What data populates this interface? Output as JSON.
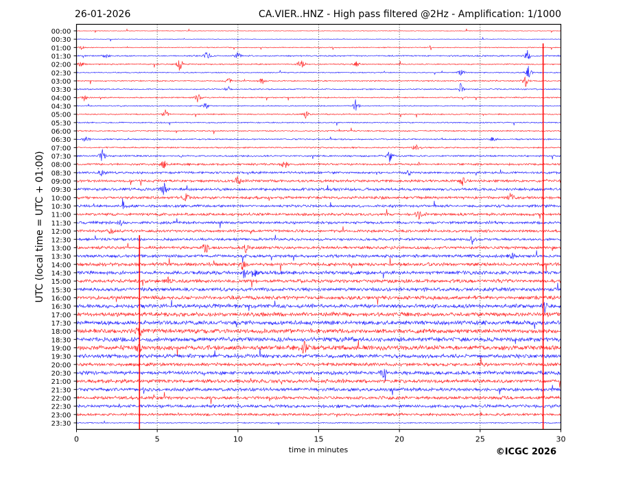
{
  "chart_data": {
    "type": "line",
    "subtype": "helicorder",
    "date": "26-01-2026",
    "title": "CA.VIER..HNZ - High pass filtered @2Hz - Amplification: 1/1000",
    "xlabel": "time in minutes",
    "ylabel": "UTC (local time = UTC + 01:00)",
    "xlim": [
      0,
      30
    ],
    "xticks": [
      "0",
      "5",
      "10",
      "15",
      "20",
      "25",
      "30"
    ],
    "xtick_values": [
      0,
      5,
      10,
      15,
      20,
      25,
      30
    ],
    "grid": "vertical dotted at 5-minute intervals",
    "rows": [
      "00:00",
      "00:30",
      "01:00",
      "01:30",
      "02:00",
      "02:30",
      "03:00",
      "03:30",
      "04:00",
      "04:30",
      "05:00",
      "05:30",
      "06:00",
      "06:30",
      "07:00",
      "07:30",
      "08:00",
      "08:30",
      "09:00",
      "09:30",
      "10:00",
      "10:30",
      "11:00",
      "11:30",
      "12:00",
      "12:30",
      "13:00",
      "13:30",
      "14:00",
      "14:30",
      "15:00",
      "15:30",
      "16:00",
      "16:30",
      "17:00",
      "17:30",
      "18:00",
      "18:30",
      "19:00",
      "19:30",
      "20:00",
      "20:30",
      "21:00",
      "21:30",
      "22:00",
      "22:30",
      "23:00",
      "23:30"
    ],
    "row_colors": [
      "#ff0000",
      "#0000ff"
    ],
    "noise_level": [
      0.3,
      0.3,
      0.5,
      0.8,
      0.7,
      0.6,
      0.7,
      0.7,
      0.7,
      0.6,
      0.7,
      0.7,
      0.7,
      0.8,
      0.8,
      1.0,
      1.2,
      1.3,
      1.5,
      1.6,
      1.6,
      1.5,
      1.6,
      1.6,
      1.5,
      1.5,
      1.7,
      1.8,
      2.0,
      2.1,
      2.0,
      2.1,
      2.2,
      2.3,
      2.4,
      2.5,
      2.6,
      2.6,
      2.7,
      2.3,
      2.0,
      2.2,
      2.1,
      2.0,
      1.9,
      1.8,
      1.5,
      0.6
    ],
    "events": [
      [
        2,
        0.3,
        3
      ],
      [
        3,
        1.8,
        4
      ],
      [
        3,
        8.1,
        10
      ],
      [
        3,
        10.0,
        7
      ],
      [
        3,
        27.9,
        12
      ],
      [
        4,
        0.3,
        5
      ],
      [
        4,
        6.4,
        12
      ],
      [
        4,
        13.9,
        10
      ],
      [
        4,
        17.3,
        6
      ],
      [
        5,
        23.8,
        8
      ],
      [
        5,
        28.0,
        12
      ],
      [
        6,
        9.4,
        8
      ],
      [
        6,
        11.5,
        7
      ],
      [
        6,
        27.8,
        12
      ],
      [
        7,
        9.4,
        6
      ],
      [
        7,
        23.8,
        10
      ],
      [
        8,
        0.5,
        6
      ],
      [
        8,
        7.5,
        8
      ],
      [
        9,
        8.0,
        6
      ],
      [
        9,
        17.3,
        12
      ],
      [
        10,
        5.5,
        7
      ],
      [
        10,
        14.2,
        6
      ],
      [
        13,
        0.6,
        7
      ],
      [
        13,
        25.8,
        5
      ],
      [
        14,
        21.0,
        6
      ],
      [
        15,
        1.6,
        10
      ],
      [
        15,
        19.4,
        9
      ],
      [
        16,
        5.4,
        8
      ],
      [
        16,
        12.9,
        10
      ],
      [
        17,
        1.6,
        8
      ],
      [
        17,
        20.6,
        6
      ],
      [
        18,
        10.0,
        8
      ],
      [
        18,
        23.9,
        8
      ],
      [
        19,
        5.4,
        12
      ],
      [
        20,
        6.8,
        9
      ],
      [
        20,
        26.9,
        7
      ],
      [
        21,
        2.9,
        6
      ],
      [
        22,
        21.2,
        7
      ],
      [
        23,
        2.7,
        7
      ],
      [
        24,
        2.1,
        8
      ],
      [
        25,
        24.5,
        7
      ],
      [
        26,
        8.0,
        10
      ],
      [
        26,
        10.5,
        6
      ],
      [
        27,
        26.9,
        9
      ],
      [
        28,
        10.3,
        10
      ],
      [
        29,
        10.4,
        9
      ],
      [
        29,
        11.1,
        6
      ],
      [
        30,
        5.7,
        8
      ],
      [
        33,
        29.0,
        10
      ],
      [
        36,
        3.9,
        10
      ],
      [
        38,
        3.9,
        8
      ],
      [
        38,
        14.1,
        12
      ],
      [
        41,
        19.0,
        7
      ]
    ],
    "long_signals": [
      {
        "minute": 3.9,
        "from_row": "12:30",
        "to_row": "23:30"
      },
      {
        "minute": 28.9,
        "from_row": "01:00",
        "to_row": "23:30"
      }
    ]
  },
  "footer": {
    "copyright": "©ICGC 2026"
  }
}
